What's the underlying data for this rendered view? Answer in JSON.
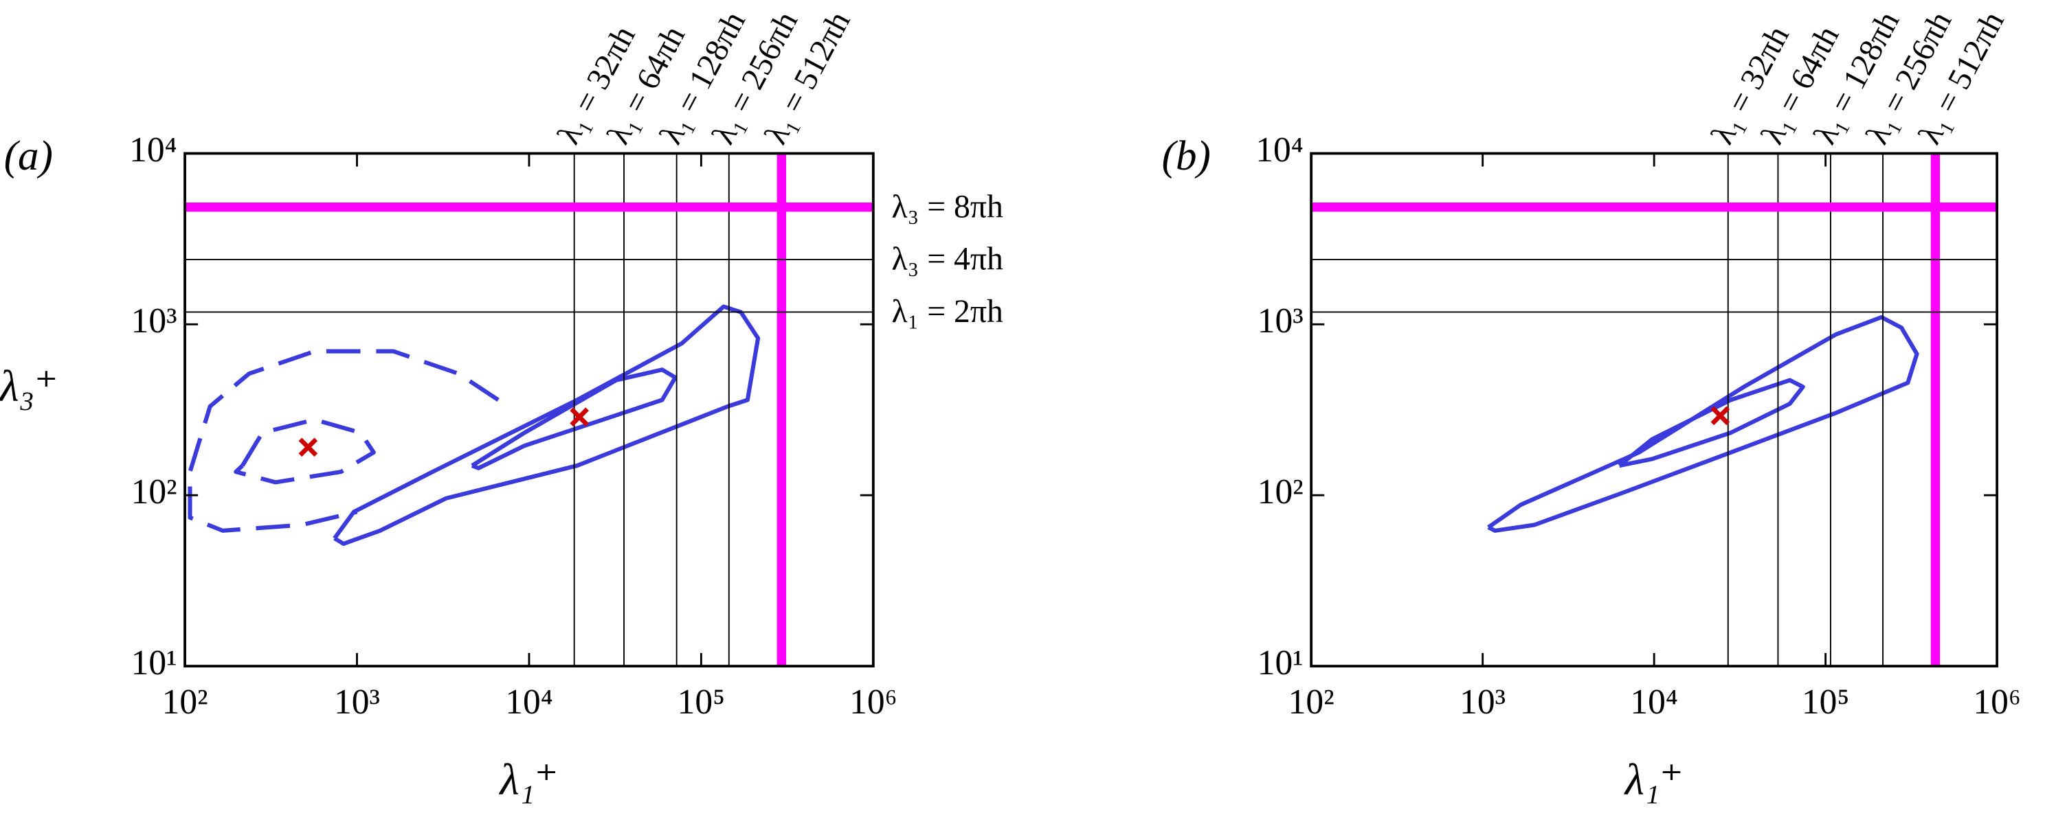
{
  "chart_data": [
    {
      "type": "contour",
      "panel_label": "(a)",
      "xlabel": "λ₁⁺",
      "ylabel": "λ₃⁺",
      "xscale": "log",
      "yscale": "log",
      "xlim": [
        100,
        1000000
      ],
      "ylim": [
        10,
        10000
      ],
      "xticks": [
        {
          "value": 100,
          "label": "10²"
        },
        {
          "value": 1000,
          "label": "10³"
        },
        {
          "value": 10000,
          "label": "10⁴"
        },
        {
          "value": 100000,
          "label": "10⁵"
        },
        {
          "value": 1000000,
          "label": "10⁶"
        }
      ],
      "yticks": [
        {
          "value": 10,
          "label": "10¹"
        },
        {
          "value": 100,
          "label": "10²"
        },
        {
          "value": 1000,
          "label": "10³"
        },
        {
          "value": 10000,
          "label": "10⁴"
        }
      ],
      "line_color": "#000000",
      "highlight_color": "#ff00ff",
      "vlines": [
        {
          "x": 18300,
          "label": "λ₁ = 32πh"
        },
        {
          "x": 35600,
          "label": "λ₁ = 64πh"
        },
        {
          "x": 72000,
          "label": "λ₁ = 128πh"
        },
        {
          "x": 145000,
          "label": "λ₁ = 256πh"
        },
        {
          "x": 293000,
          "label": "λ₁ = 512πh",
          "highlight": true
        }
      ],
      "hlines": [
        {
          "y": 4850,
          "label": "λ₃ = 8πh",
          "highlight": true
        },
        {
          "y": 2395,
          "label": "λ₃ = 4πh"
        },
        {
          "y": 1180,
          "label": "λ₁ = 2πh"
        }
      ],
      "contour_color": "#3b3bdc",
      "contours": [
        {
          "x": [
            740,
            960,
            2750,
            19000,
            77000,
            135000,
            170000,
            214000,
            186000,
            143000,
            19000,
            3300,
            1360,
            835,
            740
          ],
          "y": [
            56,
            80,
            137,
            361,
            773,
            1270,
            1180,
            830,
            361,
            331,
            149,
            96,
            62,
            52,
            56
          ],
          "dashed": false
        },
        {
          "x": [
            4660,
            9400,
            32100,
            59300,
            70700,
            59300,
            26900,
            9400,
            5090,
            4660
          ],
          "y": [
            149,
            232,
            471,
            543,
            488,
            361,
            277,
            195,
            144,
            149
          ],
          "dashed": false
        },
        {
          "x": [
            6620,
            3900,
            1630,
            567,
            236,
            140,
            107,
            107,
            166,
            477,
            1000
          ],
          "y": [
            361,
            514,
            695,
            695,
            514,
            331,
            137,
            74,
            62,
            67,
            80
          ],
          "dashed": true
        },
        {
          "x": [
            216,
            282,
            567,
            1050,
            1250,
            807,
            336,
            198,
            216
          ],
          "y": [
            149,
            232,
            277,
            232,
            178,
            137,
            119,
            137,
            149
          ],
          "dashed": true
        }
      ],
      "marker_color": "#cc0000",
      "markers": {
        "x": [
          520,
          19600
        ],
        "y": [
          191,
          287
        ]
      }
    },
    {
      "type": "contour",
      "panel_label": "(b)",
      "xlabel": "λ₁⁺",
      "ylabel": null,
      "xscale": "log",
      "yscale": "log",
      "xlim": [
        100,
        1000000
      ],
      "ylim": [
        10,
        10000
      ],
      "xticks": [
        {
          "value": 100,
          "label": "10²"
        },
        {
          "value": 1000,
          "label": "10³"
        },
        {
          "value": 10000,
          "label": "10⁴"
        },
        {
          "value": 100000,
          "label": "10⁵"
        },
        {
          "value": 1000000,
          "label": "10⁶"
        }
      ],
      "yticks": [
        {
          "value": 10,
          "label": "10¹"
        },
        {
          "value": 100,
          "label": "10²"
        },
        {
          "value": 1000,
          "label": "10³"
        },
        {
          "value": 10000,
          "label": "10⁴"
        }
      ],
      "line_color": "#000000",
      "highlight_color": "#ff00ff",
      "vlines": [
        {
          "x": 27000,
          "label": "λ₁ = 32πh"
        },
        {
          "x": 52800,
          "label": "λ₁ = 64πh"
        },
        {
          "x": 107000,
          "label": "λ₁ = 128πh"
        },
        {
          "x": 216000,
          "label": "λ₁ = 256πh"
        },
        {
          "x": 437000,
          "label": "λ₁ = 512πh",
          "highlight": true
        }
      ],
      "hlines": [
        {
          "y": 4850,
          "highlight": true
        },
        {
          "y": 2395
        },
        {
          "y": 1180
        }
      ],
      "contour_color": "#3b3bdc",
      "contours": [
        {
          "x": [
            1080,
            1670,
            8170,
            33400,
            115000,
            212000,
            277000,
            341000,
            302000,
            115000,
            28000,
            6850,
            2000,
            1180,
            1080
          ],
          "y": [
            65,
            88,
            178,
            431,
            874,
            1100,
            955,
            671,
            455,
            303,
            178,
            105,
            67,
            62,
            65
          ],
          "dashed": false
        },
        {
          "x": [
            6270,
            9750,
            28000,
            61900,
            73800,
            61900,
            28000,
            9750,
            6270
          ],
          "y": [
            149,
            213,
            361,
            471,
            431,
            343,
            232,
            163,
            149
          ],
          "dashed": false
        }
      ],
      "marker_color": "#cc0000",
      "markers": {
        "x": [
          24300
        ],
        "y": [
          292
        ]
      }
    }
  ]
}
